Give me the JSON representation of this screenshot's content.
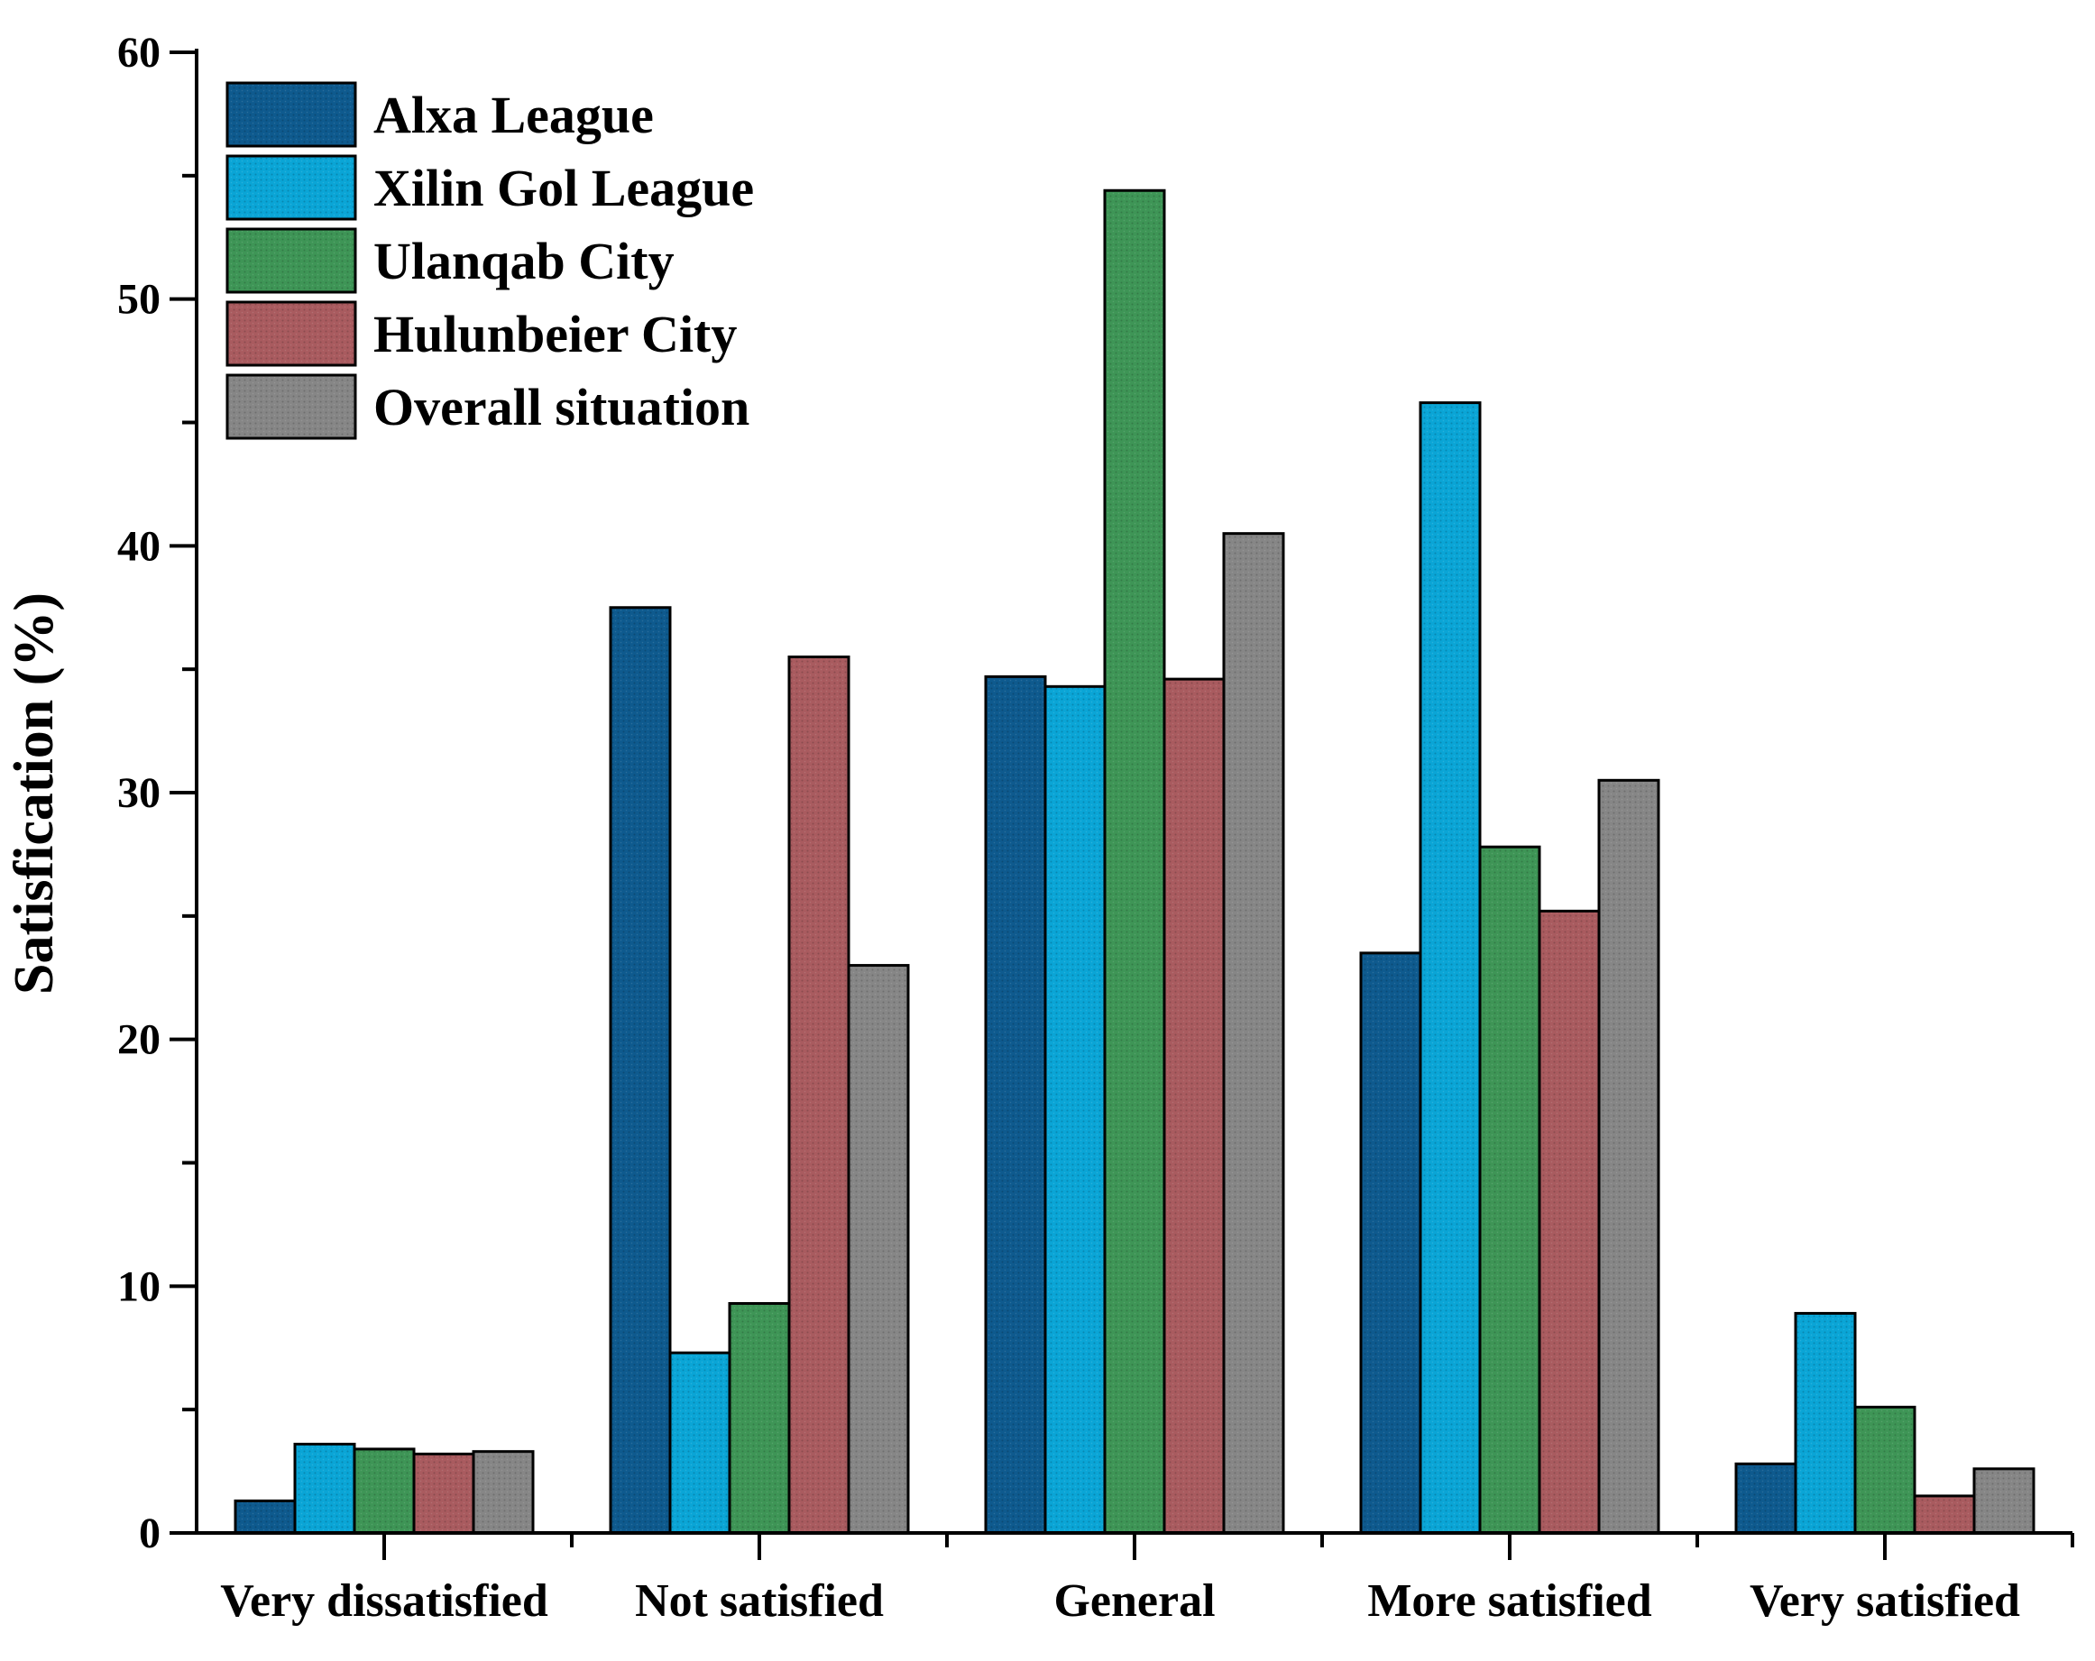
{
  "chart_data": {
    "type": "bar",
    "title": "",
    "xlabel": "",
    "ylabel": "Satisfication (%)",
    "ylim": [
      0,
      60
    ],
    "yticks": [
      0,
      10,
      20,
      30,
      40,
      50,
      60
    ],
    "grid": false,
    "legend_position": "top-left",
    "categories": [
      "Very dissatisfied",
      "Not satisfied",
      "General",
      "More satisfied",
      "Very satisfied"
    ],
    "series": [
      {
        "name": "Alxa League",
        "color": "#0E5A8E",
        "values": [
          1.3,
          37.5,
          34.7,
          23.5,
          2.8
        ]
      },
      {
        "name": "Xilin Gol League",
        "color": "#0AA5D6",
        "values": [
          3.6,
          7.3,
          34.3,
          45.8,
          8.9
        ]
      },
      {
        "name": "Ulanqab City",
        "color": "#3E9556",
        "values": [
          3.4,
          9.3,
          54.4,
          27.8,
          5.1
        ]
      },
      {
        "name": "Hulunbeier City",
        "color": "#A95B5F",
        "values": [
          3.2,
          35.5,
          34.6,
          25.2,
          1.5
        ]
      },
      {
        "name": "Overall situation",
        "color": "#868686",
        "values": [
          3.3,
          23.0,
          40.5,
          30.5,
          2.6
        ]
      }
    ]
  }
}
